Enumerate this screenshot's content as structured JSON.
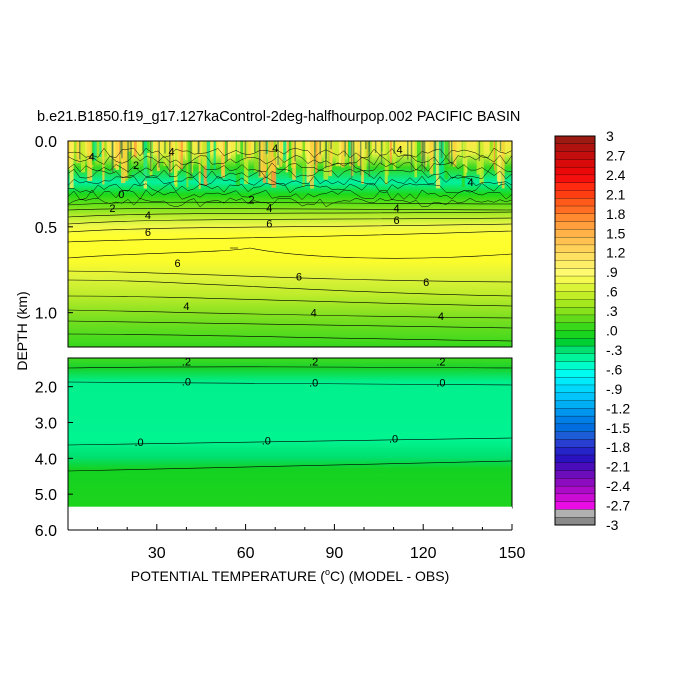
{
  "chart_data": {
    "type": "heatmap",
    "title": "b.e21.B1850.f19_g17.127kaControl-2deg-halfhourpop.002 PACIFIC BASIN",
    "xlabel_prefix": "POTENTIAL TEMPERATURE (",
    "xlabel_degree": "o",
    "xlabel_suffix": "C) (MODEL - OBS)",
    "ylabel": "DEPTH (km)",
    "xlim": [
      0,
      150
    ],
    "x_ticks": [
      30,
      60,
      90,
      120,
      150
    ],
    "upper_panel": {
      "ylim": [
        0.0,
        1.2
      ],
      "y_ticks": [
        {
          "value": 0.0,
          "label": "0.0"
        },
        {
          "value": 0.5,
          "label": "0.5"
        },
        {
          "value": 1.0,
          "label": "1.0"
        }
      ],
      "contours": [
        {
          "x": 35,
          "depth": 0.06,
          "label": "4"
        },
        {
          "x": 8,
          "depth": 0.09,
          "label": "4"
        },
        {
          "x": 23,
          "depth": 0.14,
          "label": "2"
        },
        {
          "x": 70,
          "depth": 0.04,
          "label": "4"
        },
        {
          "x": 112,
          "depth": 0.05,
          "label": "4"
        },
        {
          "x": 136,
          "depth": 0.24,
          "label": "4"
        },
        {
          "x": 18,
          "depth": 0.31,
          "label": "0"
        },
        {
          "x": 15,
          "depth": 0.39,
          "label": "2"
        },
        {
          "x": 62,
          "depth": 0.34,
          "label": "2"
        },
        {
          "x": 27,
          "depth": 0.43,
          "label": "4"
        },
        {
          "x": 68,
          "depth": 0.39,
          "label": "4"
        },
        {
          "x": 111,
          "depth": 0.39,
          "label": "4"
        },
        {
          "x": 27,
          "depth": 0.53,
          "label": "6"
        },
        {
          "x": 68,
          "depth": 0.48,
          "label": "6"
        },
        {
          "x": 111,
          "depth": 0.46,
          "label": "6"
        },
        {
          "x": 37,
          "depth": 0.71,
          "label": "6"
        },
        {
          "x": 78,
          "depth": 0.79,
          "label": "6"
        },
        {
          "x": 121,
          "depth": 0.82,
          "label": "6"
        },
        {
          "x": 40,
          "depth": 0.96,
          "label": "4"
        },
        {
          "x": 83,
          "depth": 1.0,
          "label": "4"
        },
        {
          "x": 126,
          "depth": 1.02,
          "label": "4"
        }
      ]
    },
    "lower_panel": {
      "ylim": [
        1.2,
        6.0
      ],
      "y_ticks": [
        {
          "value": 2.0,
          "label": "2.0"
        },
        {
          "value": 3.0,
          "label": "3.0"
        },
        {
          "value": 4.0,
          "label": "4.0"
        },
        {
          "value": 5.0,
          "label": "5.0"
        },
        {
          "value": 6.0,
          "label": "6.0"
        }
      ],
      "data_bottom_depth": 5.35,
      "contours": [
        {
          "x": 40,
          "depth": 1.3,
          "label": ".2"
        },
        {
          "x": 83,
          "depth": 1.3,
          "label": ".2"
        },
        {
          "x": 126,
          "depth": 1.3,
          "label": ".2"
        },
        {
          "x": 40,
          "depth": 1.85,
          "label": ".0"
        },
        {
          "x": 83,
          "depth": 1.88,
          "label": ".0"
        },
        {
          "x": 126,
          "depth": 1.88,
          "label": ".0"
        },
        {
          "x": 24,
          "depth": 3.55,
          "label": ".0"
        },
        {
          "x": 67,
          "depth": 3.5,
          "label": ".0"
        },
        {
          "x": 110,
          "depth": 3.45,
          "label": ".0"
        }
      ]
    },
    "colorbar": {
      "labels": [
        "3",
        "2.7",
        "2.4",
        "2.1",
        "1.8",
        "1.5",
        "1.2",
        ".9",
        ".6",
        ".3",
        ".0",
        "-.3",
        "-.6",
        "-.9",
        "-1.2",
        "-1.5",
        "-1.8",
        "-2.1",
        "-2.4",
        "-2.7",
        "-3"
      ],
      "colors": [
        "#9b1a12",
        "#b01210",
        "#c40e0e",
        "#d80a0a",
        "#ea0808",
        "#f5100e",
        "#ff2a10",
        "#ff3d12",
        "#ff5a1a",
        "#ff6e22",
        "#ff8a30",
        "#ff9e3c",
        "#ffb248",
        "#ffc250",
        "#ffd25a",
        "#ffe060",
        "#ffee68",
        "#fffa70",
        "#f4fa50",
        "#dcf438",
        "#c2ee28",
        "#a6e81e",
        "#86e21a",
        "#62dc1a",
        "#3ad81a",
        "#18d41c",
        "#00d032",
        "#00e070",
        "#00f49a",
        "#00fcc8",
        "#00fcf0",
        "#00ecfc",
        "#00d8fc",
        "#00c4fa",
        "#00aef4",
        "#0096ee",
        "#0080e6",
        "#006ede",
        "#1c5cd6",
        "#283ed0",
        "#2424c8",
        "#2a12c0",
        "#4a0cba",
        "#6c0cba",
        "#8c0cc0",
        "#ac0cc8",
        "#cc0cd4",
        "#ea0ce4",
        "#b0b0b0",
        "#8a8a8a"
      ]
    }
  }
}
